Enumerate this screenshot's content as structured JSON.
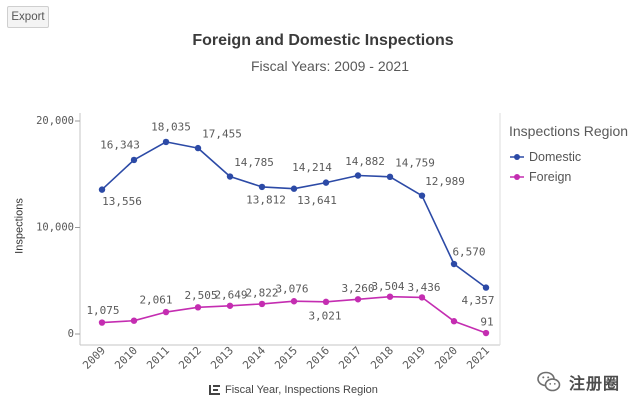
{
  "toolbar": {
    "export_label": "Export"
  },
  "chart_data": {
    "type": "line",
    "title": "Foreign and Domestic Inspections",
    "subtitle": "Fiscal Years: 2009 - 2021",
    "ylabel": "Inspections",
    "categories": [
      "2009",
      "2010",
      "2011",
      "2012",
      "2013",
      "2014",
      "2015",
      "2016",
      "2017",
      "2018",
      "2019",
      "2020",
      "2021"
    ],
    "ylim": [
      0,
      20000
    ],
    "y_ticks": [
      0,
      10000,
      20000
    ],
    "y_tick_labels": [
      "0",
      "10,000",
      "20,000"
    ],
    "grid": false,
    "legend": {
      "title": "Inspections Region",
      "position": "right"
    },
    "series": [
      {
        "name": "Domestic",
        "color": "#2c4aa6",
        "values": [
          13556,
          16343,
          18035,
          17455,
          14785,
          13812,
          13641,
          14214,
          14882,
          14759,
          12989,
          6570,
          4357
        ],
        "data_labels": [
          "13,556",
          "16,343",
          "18,035",
          "17,455",
          "14,785",
          "13,812",
          "13,641",
          "14,214",
          "14,882",
          "14,759",
          "12,989",
          "6,570",
          "4,357"
        ]
      },
      {
        "name": "Foreign",
        "color": "#c42db1",
        "values": [
          1075,
          1250,
          2061,
          2505,
          2649,
          2822,
          3076,
          3021,
          3260,
          3504,
          3436,
          1200,
          91
        ],
        "data_labels": [
          "1,075",
          null,
          "2,061",
          "2,505",
          "2,649",
          "2,822",
          "3,076",
          "3,021",
          "3,260",
          "3,504",
          "3,436",
          null,
          "91"
        ]
      }
    ]
  },
  "footer": {
    "icon": "dimension-icon",
    "dimensions_label": "Fiscal Year, Inspections Region"
  },
  "watermark": {
    "icon": "wechat-icon",
    "text": "注册圈"
  }
}
